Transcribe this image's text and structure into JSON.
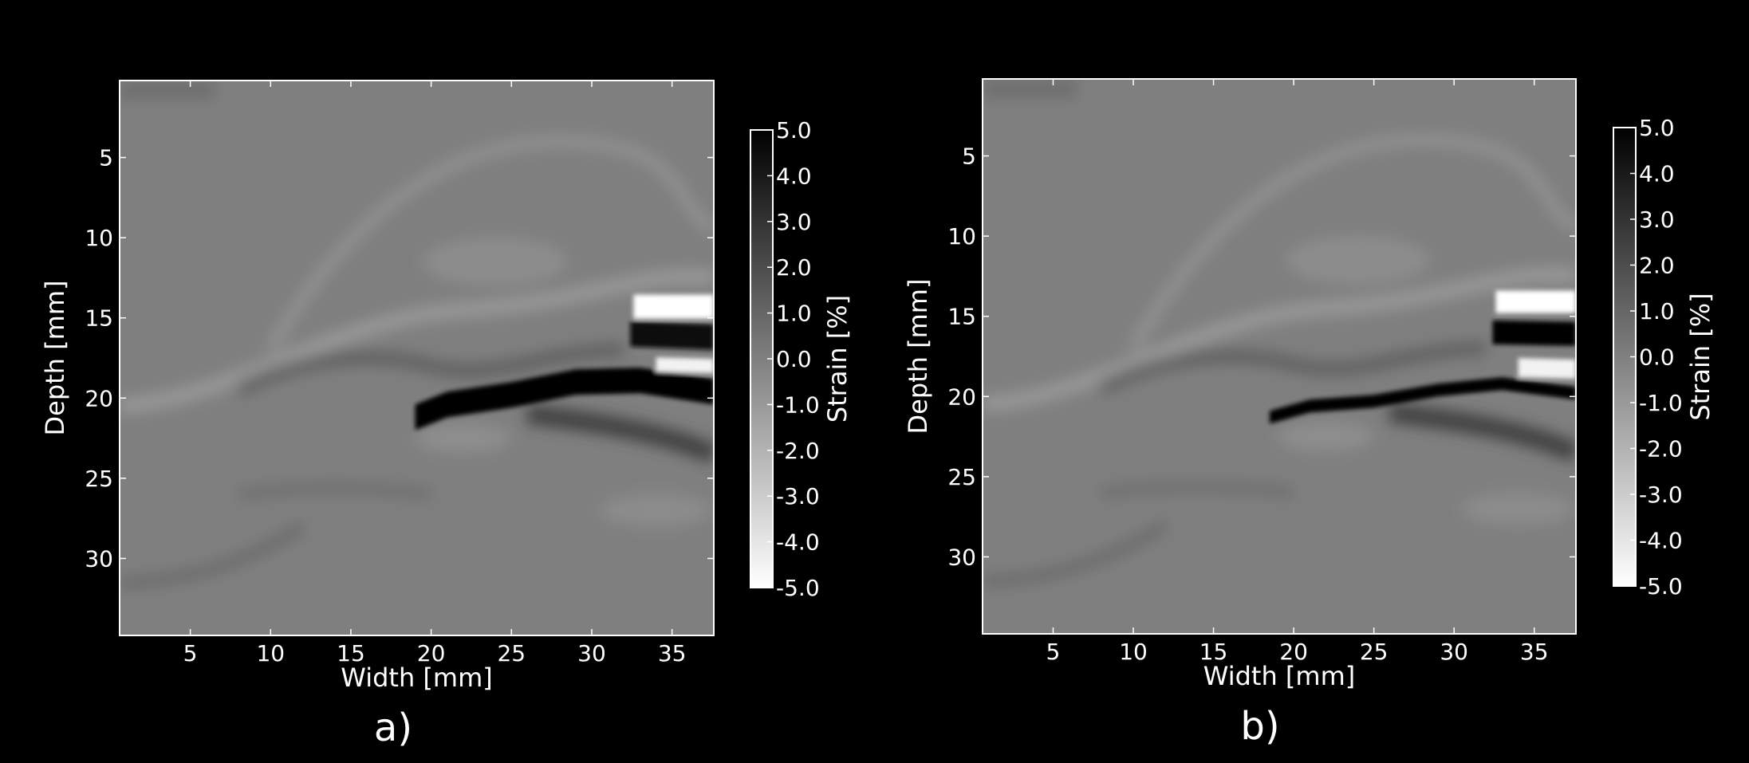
{
  "chart_data": [
    {
      "type": "heatmap",
      "panel_label": "a)",
      "xlabel": "Width [mm]",
      "ylabel": "Depth [mm]",
      "xlim": [
        0.6,
        37.6
      ],
      "ylim": [
        34.8,
        0.2
      ],
      "xticks": [
        5,
        10,
        15,
        20,
        25,
        30,
        35
      ],
      "yticks": [
        5,
        10,
        15,
        20,
        25,
        30
      ],
      "colorbar": {
        "label": "Strain [%]",
        "range": [
          -5.0,
          5.0
        ],
        "colormap": "white (-5.0) to black (5.0)",
        "ticks": [
          "5.0",
          "4.0",
          "3.0",
          "2.0",
          "1.0",
          "0.0",
          "-1.0",
          "-2.0",
          "-3.0",
          "-4.0",
          "-5.0"
        ]
      },
      "features": [
        {
          "name": "black_band_main",
          "strain": 5.0,
          "path": [
            [
              19.0,
              21.2
            ],
            [
              21.0,
              20.4
            ],
            [
              25.0,
              19.8
            ],
            [
              29.0,
              19.0
            ],
            [
              33.0,
              18.9
            ],
            [
              37.6,
              19.6
            ]
          ],
          "thickness": 1.6
        },
        {
          "name": "black_band_upper",
          "strain": 4.6,
          "path": [
            [
              32.4,
              16.0
            ],
            [
              37.6,
              16.2
            ]
          ],
          "thickness": 1.6
        },
        {
          "name": "white_band_upper",
          "strain": -5.0,
          "path": [
            [
              32.6,
              14.3
            ],
            [
              37.6,
              14.3
            ]
          ],
          "thickness": 1.5
        },
        {
          "name": "white_band_lower",
          "strain": -4.5,
          "path": [
            [
              34.0,
              17.9
            ],
            [
              37.6,
              18.0
            ]
          ],
          "thickness": 0.9
        }
      ]
    },
    {
      "type": "heatmap",
      "panel_label": "b)",
      "xlabel": "Width [mm]",
      "ylabel": "Depth [mm]",
      "xlim": [
        0.6,
        37.6
      ],
      "ylim": [
        34.8,
        0.2
      ],
      "xticks": [
        5,
        10,
        15,
        20,
        25,
        30,
        35
      ],
      "yticks": [
        5,
        10,
        15,
        20,
        25,
        30
      ],
      "colorbar": {
        "label": "Strain [%]",
        "range": [
          -5.0,
          5.0
        ],
        "colormap": "white (-5.0) to black (5.0)",
        "ticks": [
          "5.0",
          "4.0",
          "3.0",
          "2.0",
          "1.0",
          "0.0",
          "-1.0",
          "-2.0",
          "-3.0",
          "-4.0",
          "-5.0"
        ]
      },
      "features": [
        {
          "name": "black_band_main",
          "strain": 5.0,
          "path": [
            [
              18.5,
              21.3
            ],
            [
              21.0,
              20.6
            ],
            [
              25.0,
              20.3
            ],
            [
              29.0,
              19.6
            ],
            [
              33.0,
              19.2
            ],
            [
              37.6,
              19.8
            ]
          ],
          "thickness": 0.8
        },
        {
          "name": "black_band_upper",
          "strain": 4.8,
          "path": [
            [
              32.4,
              16.0
            ],
            [
              37.6,
              16.1
            ]
          ],
          "thickness": 1.5
        },
        {
          "name": "white_band_upper",
          "strain": -5.0,
          "path": [
            [
              32.6,
              14.1
            ],
            [
              37.6,
              14.1
            ]
          ],
          "thickness": 1.4
        },
        {
          "name": "white_band_lower",
          "strain": -4.5,
          "path": [
            [
              34.0,
              18.2
            ],
            [
              37.6,
              18.3
            ]
          ],
          "thickness": 1.2
        }
      ]
    }
  ]
}
